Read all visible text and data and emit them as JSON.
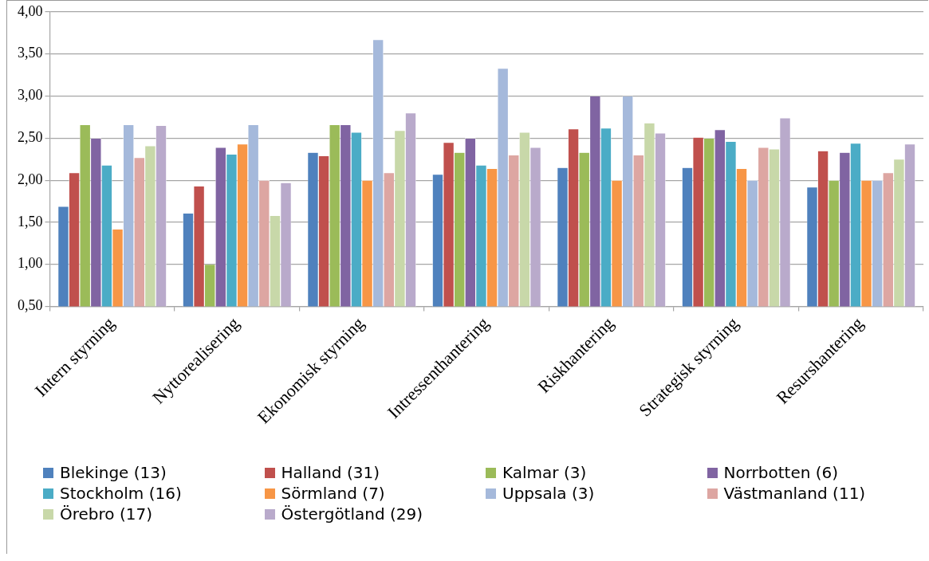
{
  "chart_data": {
    "type": "bar",
    "categories": [
      "Intern styrning",
      "Nyttorealisering",
      "Ekonomisk styrning",
      "Intressenthantering",
      "Riskhantering",
      "Strategisk styrning",
      "Resurshantering"
    ],
    "series": [
      {
        "name": "Blekinge (13)",
        "color": "#4f81bd",
        "values": [
          1.69,
          1.61,
          2.33,
          2.07,
          2.15,
          2.15,
          1.92
        ]
      },
      {
        "name": "Halland (31)",
        "color": "#c0504d",
        "values": [
          2.09,
          1.93,
          2.29,
          2.45,
          2.61,
          2.51,
          2.35
        ]
      },
      {
        "name": "Kalmar (3)",
        "color": "#9bbb59",
        "values": [
          2.66,
          1.0,
          2.66,
          2.33,
          2.33,
          2.5,
          2.0
        ]
      },
      {
        "name": "Norrbotten (6)",
        "color": "#8064a2",
        "values": [
          2.5,
          2.39,
          2.66,
          2.5,
          3.0,
          2.6,
          2.33
        ]
      },
      {
        "name": "Stockholm (16)",
        "color": "#4bacc6",
        "values": [
          2.18,
          2.31,
          2.57,
          2.18,
          2.62,
          2.46,
          2.44
        ]
      },
      {
        "name": "Sörmland (7)",
        "color": "#f79646",
        "values": [
          1.42,
          2.43,
          2.0,
          2.14,
          2.0,
          2.14,
          2.0
        ]
      },
      {
        "name": "Uppsala (3)",
        "color": "#a5b9db",
        "values": [
          2.66,
          2.66,
          3.67,
          3.33,
          3.0,
          2.0,
          2.0
        ]
      },
      {
        "name": "Västmanland (11)",
        "color": "#dda6a2",
        "values": [
          2.27,
          2.0,
          2.09,
          2.3,
          2.3,
          2.39,
          2.09
        ]
      },
      {
        "name": "Örebro (17)",
        "color": "#c8d8a9",
        "values": [
          2.41,
          1.58,
          2.59,
          2.57,
          2.68,
          2.37,
          2.25
        ]
      },
      {
        "name": "Östergötland (29)",
        "color": "#b9aacb",
        "values": [
          2.65,
          1.97,
          2.8,
          2.39,
          2.56,
          2.74,
          2.43
        ]
      }
    ],
    "ylim": [
      0.5,
      4
    ],
    "yticks": [
      {
        "value": 0.5,
        "label": "0,50"
      },
      {
        "value": 1,
        "label": "1,00"
      },
      {
        "value": 1.5,
        "label": "1,50"
      },
      {
        "value": 2,
        "label": "2,00"
      },
      {
        "value": 2.5,
        "label": "2,50"
      },
      {
        "value": 3,
        "label": "3,00"
      },
      {
        "value": 3.5,
        "label": "3,50"
      },
      {
        "value": 4,
        "label": "4,00"
      }
    ],
    "grid": "y",
    "legend": "bottom"
  }
}
